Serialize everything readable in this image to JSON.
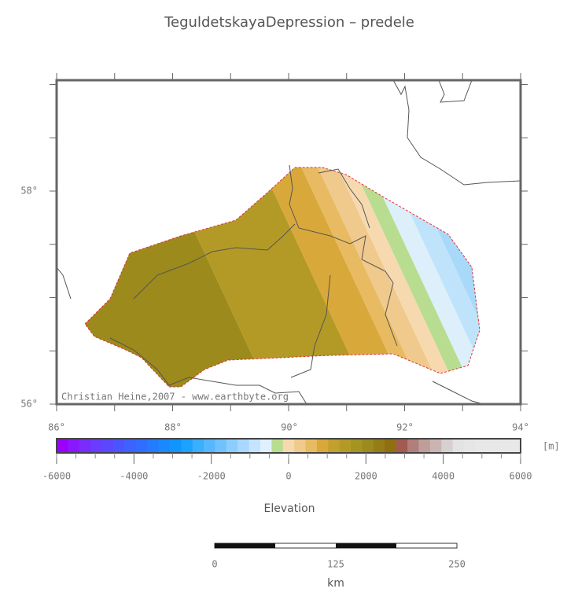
{
  "title": "TeguldetskayaDepression – predele",
  "map": {
    "lat_labels": [
      "58°",
      "56°"
    ],
    "lon_labels": [
      "86°",
      "88°",
      "90°",
      "92°",
      "94°"
    ],
    "credit": "Christian Heine,2007 - www.earthbyte.org"
  },
  "colorbar": {
    "range": [
      -6000,
      6000
    ],
    "ticks": [
      -6000,
      -4000,
      -2000,
      0,
      2000,
      4000,
      6000
    ],
    "unit": "[m]",
    "label": "Elevation"
  },
  "scale_bar": {
    "labels": [
      "0",
      "125",
      "250"
    ],
    "unit": "km"
  }
}
